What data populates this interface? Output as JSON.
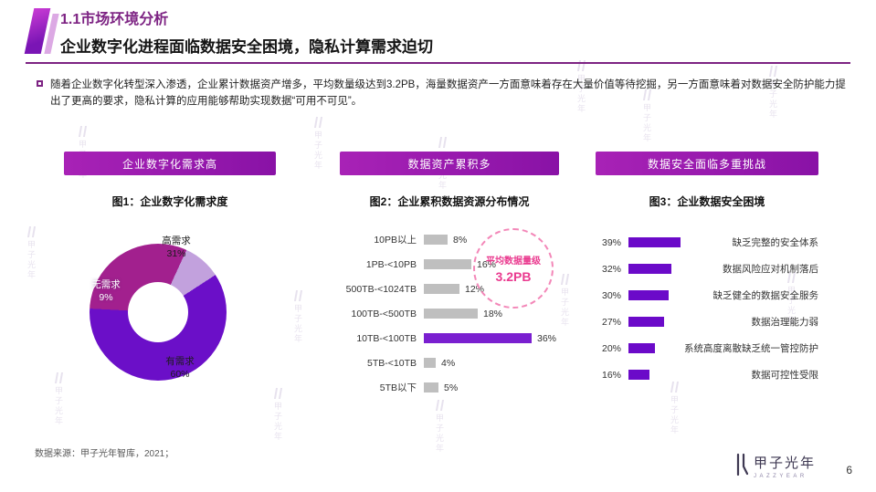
{
  "page": {
    "watermark": "甲子光年",
    "page_number": "6"
  },
  "header": {
    "section_title": "1.1市场环境分析",
    "title": "企业数字化进程面临数据安全困境，隐私计算需求迫切"
  },
  "intro": {
    "text": "随着企业数字化转型深入渗透，企业累计数据资产增多，平均数量级达到3.2PB，海量数据资产一方面意味着存在大量价值等待挖掘，另一方面意味着对数据安全防护能力提出了更高的要求，隐私计算的应用能够帮助实现数据“可用不可见”。"
  },
  "panels": [
    {
      "header": "企业数字化需求高",
      "caption": "图1：企业数字化需求度"
    },
    {
      "header": "数据资产累积多",
      "caption": "图2：企业累积数据资源分布情况"
    },
    {
      "header": "数据安全面临多重挑战",
      "caption": "图3：企业数据安全困境"
    }
  ],
  "footer": {
    "source": "数据来源：甲子光年智库，2021；",
    "logo_text": "甲子光年",
    "logo_subtext": "JAZZYEAR"
  },
  "colors": {
    "accent_purple": "#7D2383",
    "panel_header_start": "#A822B6",
    "panel_header_end": "#8912A6",
    "bar_gray": "#BFBFBF",
    "bar_purple": "#6B0AC9",
    "highlight_purple": "#7A1FD0",
    "annotation_pink": "#EA3A8F"
  },
  "chart_data": [
    {
      "type": "pie",
      "donut": true,
      "title": "图1：企业数字化需求度",
      "labels": [
        "高需求",
        "无需求",
        "有需求"
      ],
      "values": [
        31,
        9,
        60
      ],
      "value_labels": [
        "31%",
        "9%",
        "60%"
      ],
      "colors": [
        "#A2208E",
        "#C2A1DD",
        "#6B0FC8"
      ],
      "start_angle_deg": 273
    },
    {
      "type": "bar",
      "orientation": "horizontal",
      "title": "图2：企业累积数据资源分布情况",
      "categories": [
        "10PB以上",
        "1PB-<10PB",
        "500TB-<1024TB",
        "100TB-<500TB",
        "10TB-<100TB",
        "5TB-<10TB",
        "5TB以下"
      ],
      "values": [
        8,
        16,
        12,
        18,
        36,
        4,
        5
      ],
      "unit": "%",
      "bar_color": "#BFBFBF",
      "highlight_index": 4,
      "highlight_color": "#7A1FD0",
      "annotation": {
        "label": "平均数据量级",
        "value": "3.2PB"
      }
    },
    {
      "type": "bar",
      "orientation": "horizontal",
      "title": "图3：企业数据安全困境",
      "categories": [
        "缺乏完整的安全体系",
        "数据风险应对机制落后",
        "缺乏健全的数据安全服务",
        "数据治理能力弱",
        "系统高度离散缺乏统一管控防护",
        "数据可控性受限"
      ],
      "values": [
        39,
        32,
        30,
        27,
        20,
        16
      ],
      "unit": "%",
      "bar_color": "#6B0AC9"
    }
  ]
}
